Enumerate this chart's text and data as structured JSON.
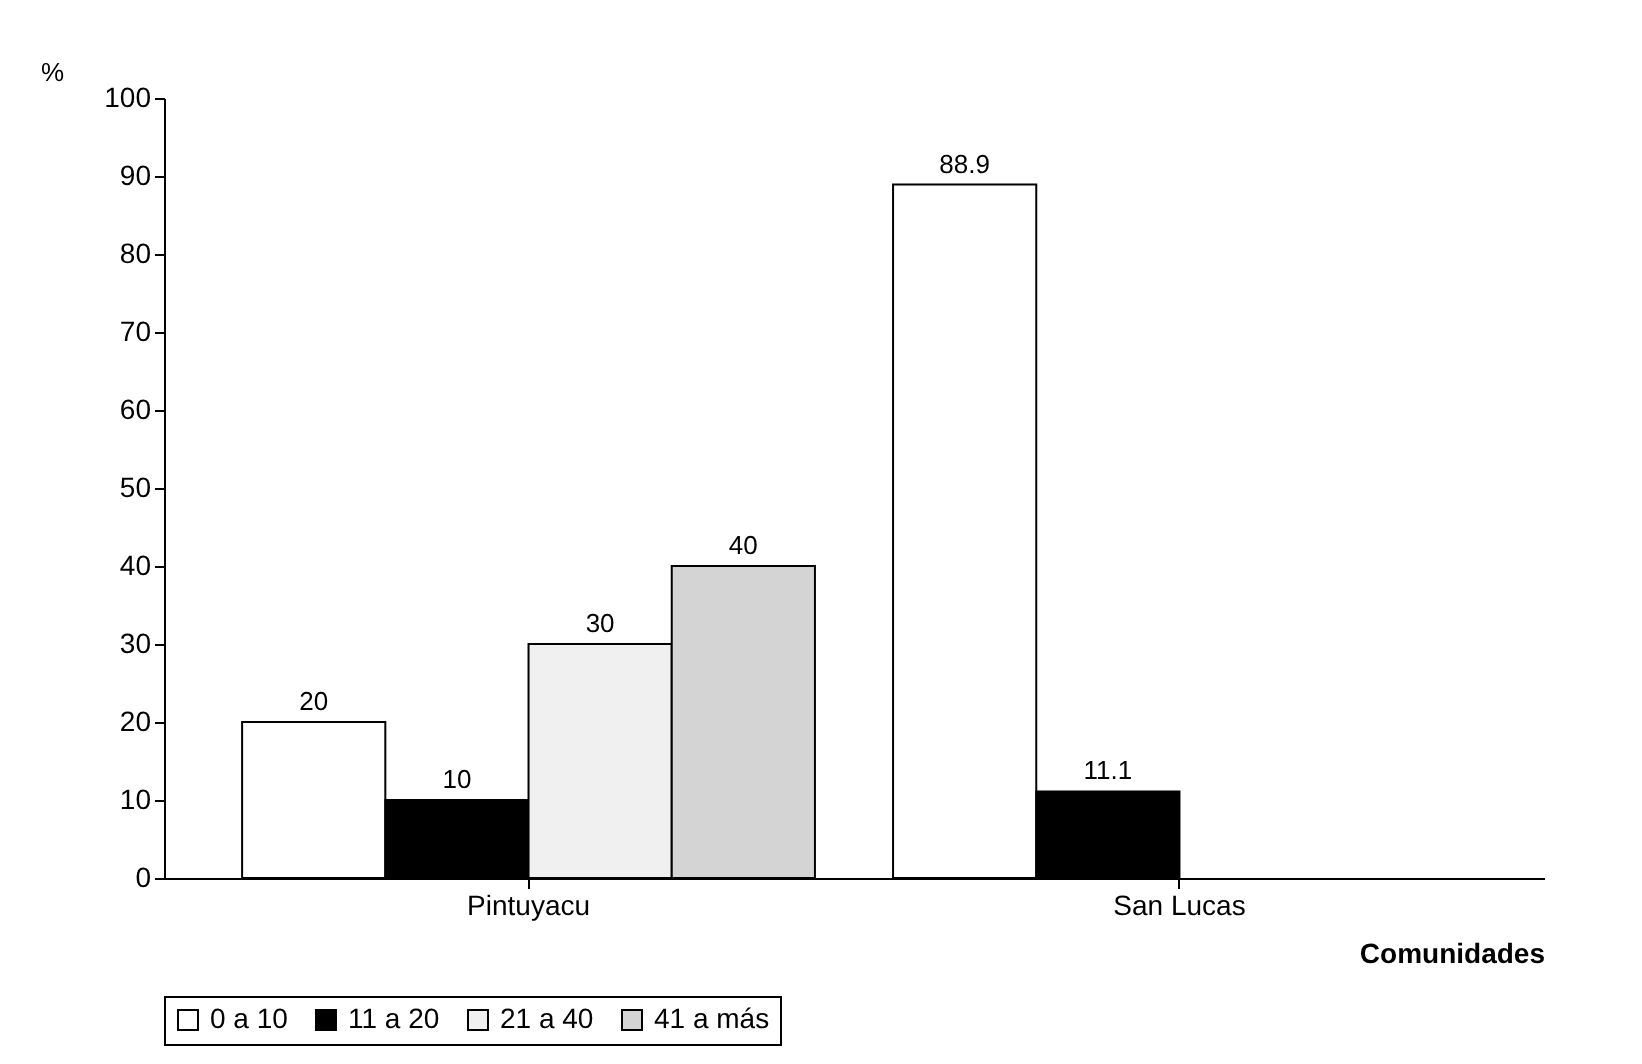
{
  "chart_data": {
    "type": "bar",
    "ylabel": "%",
    "xlabel": "Comunidades",
    "categories": [
      "Pintuyacu",
      "San Lucas"
    ],
    "series": [
      {
        "name": "0 a 10",
        "color": "#ffffff",
        "values": [
          20,
          88.9
        ]
      },
      {
        "name": "11 a 20",
        "color": "#000000",
        "values": [
          10,
          11.1
        ]
      },
      {
        "name": "21 a 40",
        "color": "#f0f0f0",
        "values": [
          30,
          null
        ]
      },
      {
        "name": "41 a más",
        "color": "#d4d4d4",
        "values": [
          40,
          null
        ]
      }
    ],
    "ylim": [
      0,
      100
    ],
    "yticks": [
      0,
      10,
      20,
      30,
      40,
      50,
      60,
      70,
      80,
      90,
      100
    ],
    "data_labels": true,
    "legend": "bottom"
  }
}
